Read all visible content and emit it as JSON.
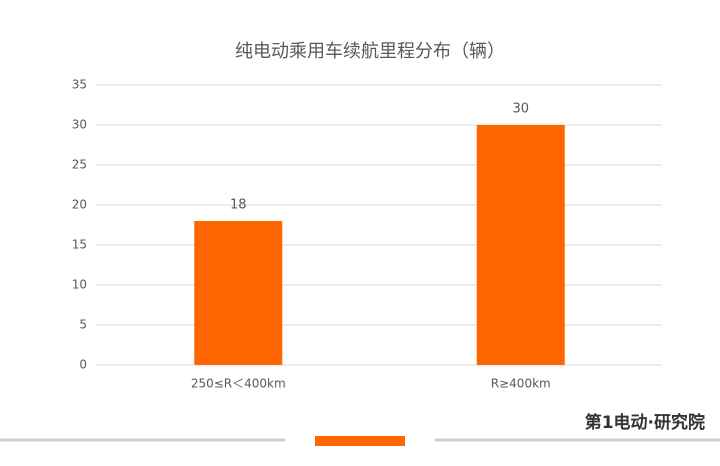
{
  "chart_data": {
    "type": "bar",
    "title": "纯电动乘用车续航里程分布（辆）",
    "categories": [
      "250≤R＜400km",
      "R≥400km"
    ],
    "values": [
      18,
      30
    ],
    "color": "#ff6600",
    "ylim": [
      0,
      35
    ],
    "yticks": [
      0,
      5,
      10,
      15,
      20,
      25,
      30,
      35
    ],
    "grid": true
  },
  "brand": "第1电动·研究院"
}
